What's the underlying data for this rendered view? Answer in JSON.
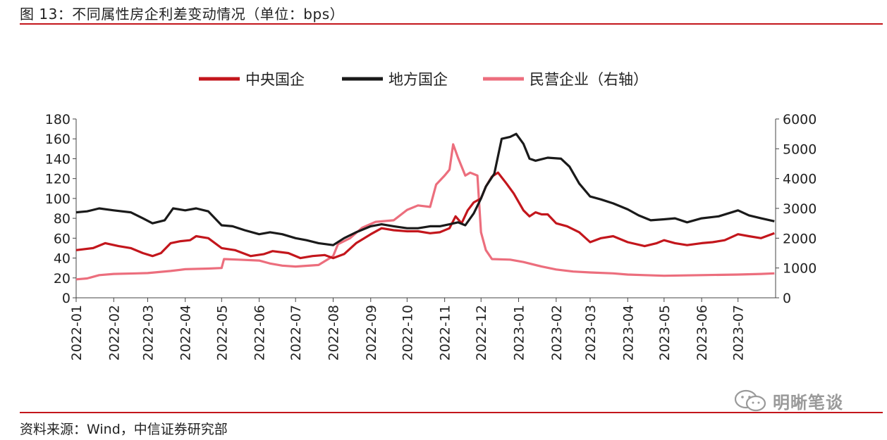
{
  "header": {
    "title": "图 13：不同属性房企利差变动情况（单位：bps）"
  },
  "footer": {
    "source": "资料来源：Wind，中信证券研究部",
    "watermark": "明晰笔谈",
    "watermark_icon": "wechat-icon"
  },
  "colors": {
    "accent": "#c3161c",
    "central_soe": "#c3161c",
    "local_soe": "#1a1a1a",
    "private": "#ec6e7d"
  },
  "chart_data": {
    "type": "line",
    "title": "",
    "xlabel": "",
    "ylabel": "",
    "legend_position": "top",
    "grid": false,
    "x_ticks": [
      "2022-01",
      "2022-02",
      "2022-03",
      "2022-04",
      "2022-05",
      "2022-06",
      "2022-07",
      "2022-08",
      "2022-09",
      "2022-10",
      "2022-11",
      "2022-12",
      "2023-01",
      "2023-02",
      "2023-03",
      "2023-04",
      "2023-05",
      "2023-06",
      "2023-07"
    ],
    "y_left": {
      "lim": [
        0,
        180
      ],
      "ticks": [
        "0",
        "20",
        "40",
        "60",
        "80",
        "100",
        "120",
        "140",
        "160",
        "180"
      ]
    },
    "y_right": {
      "lim": [
        0,
        6000
      ],
      "ticks": [
        "0",
        "1000",
        "2000",
        "3000",
        "4000",
        "5000",
        "6000"
      ]
    },
    "series": [
      {
        "name": "中央国企",
        "axis": "left",
        "color": "#c3161c",
        "points": [
          [
            "2022-01-01",
            48
          ],
          [
            "2022-01-15",
            50
          ],
          [
            "2022-01-25",
            55
          ],
          [
            "2022-02-05",
            52
          ],
          [
            "2022-02-15",
            50
          ],
          [
            "2022-02-25",
            45
          ],
          [
            "2022-03-05",
            42
          ],
          [
            "2022-03-12",
            45
          ],
          [
            "2022-03-20",
            55
          ],
          [
            "2022-03-28",
            57
          ],
          [
            "2022-04-05",
            58
          ],
          [
            "2022-04-10",
            62
          ],
          [
            "2022-04-20",
            60
          ],
          [
            "2022-05-01",
            50
          ],
          [
            "2022-05-12",
            48
          ],
          [
            "2022-05-25",
            42
          ],
          [
            "2022-06-05",
            44
          ],
          [
            "2022-06-12",
            47
          ],
          [
            "2022-06-25",
            45
          ],
          [
            "2022-07-05",
            40
          ],
          [
            "2022-07-15",
            42
          ],
          [
            "2022-07-25",
            43
          ],
          [
            "2022-08-01",
            40
          ],
          [
            "2022-08-10",
            44
          ],
          [
            "2022-08-20",
            55
          ],
          [
            "2022-09-01",
            64
          ],
          [
            "2022-09-10",
            70
          ],
          [
            "2022-09-20",
            68
          ],
          [
            "2022-10-01",
            67
          ],
          [
            "2022-10-10",
            67
          ],
          [
            "2022-10-20",
            65
          ],
          [
            "2022-10-28",
            66
          ],
          [
            "2022-11-05",
            70
          ],
          [
            "2022-11-10",
            82
          ],
          [
            "2022-11-15",
            75
          ],
          [
            "2022-11-20",
            88
          ],
          [
            "2022-11-25",
            96
          ],
          [
            "2022-12-01",
            100
          ],
          [
            "2022-12-05",
            112
          ],
          [
            "2022-12-10",
            122
          ],
          [
            "2022-12-15",
            126
          ],
          [
            "2022-12-22",
            115
          ],
          [
            "2022-12-28",
            105
          ],
          [
            "2023-01-05",
            88
          ],
          [
            "2023-01-10",
            82
          ],
          [
            "2023-01-15",
            86
          ],
          [
            "2023-01-20",
            84
          ],
          [
            "2023-01-25",
            84
          ],
          [
            "2023-02-01",
            75
          ],
          [
            "2023-02-10",
            72
          ],
          [
            "2023-02-20",
            66
          ],
          [
            "2023-03-01",
            56
          ],
          [
            "2023-03-10",
            60
          ],
          [
            "2023-03-20",
            62
          ],
          [
            "2023-04-01",
            56
          ],
          [
            "2023-04-15",
            52
          ],
          [
            "2023-04-25",
            55
          ],
          [
            "2023-05-01",
            58
          ],
          [
            "2023-05-10",
            55
          ],
          [
            "2023-05-20",
            53
          ],
          [
            "2023-06-01",
            55
          ],
          [
            "2023-06-10",
            56
          ],
          [
            "2023-06-20",
            58
          ],
          [
            "2023-07-01",
            64
          ],
          [
            "2023-07-10",
            62
          ],
          [
            "2023-07-20",
            60
          ],
          [
            "2023-07-31",
            65
          ]
        ]
      },
      {
        "name": "地方国企",
        "axis": "left",
        "color": "#1a1a1a",
        "points": [
          [
            "2022-01-01",
            86
          ],
          [
            "2022-01-10",
            87
          ],
          [
            "2022-01-20",
            90
          ],
          [
            "2022-02-01",
            88
          ],
          [
            "2022-02-15",
            86
          ],
          [
            "2022-02-25",
            80
          ],
          [
            "2022-03-05",
            75
          ],
          [
            "2022-03-15",
            78
          ],
          [
            "2022-03-22",
            90
          ],
          [
            "2022-04-01",
            88
          ],
          [
            "2022-04-10",
            90
          ],
          [
            "2022-04-20",
            87
          ],
          [
            "2022-05-01",
            73
          ],
          [
            "2022-05-10",
            72
          ],
          [
            "2022-05-20",
            68
          ],
          [
            "2022-06-01",
            64
          ],
          [
            "2022-06-10",
            66
          ],
          [
            "2022-06-20",
            64
          ],
          [
            "2022-07-01",
            60
          ],
          [
            "2022-07-10",
            58
          ],
          [
            "2022-07-20",
            55
          ],
          [
            "2022-08-01",
            53
          ],
          [
            "2022-08-10",
            60
          ],
          [
            "2022-08-20",
            66
          ],
          [
            "2022-09-01",
            72
          ],
          [
            "2022-09-10",
            74
          ],
          [
            "2022-09-20",
            72
          ],
          [
            "2022-10-01",
            70
          ],
          [
            "2022-10-10",
            70
          ],
          [
            "2022-10-20",
            72
          ],
          [
            "2022-10-28",
            72
          ],
          [
            "2022-11-05",
            74
          ],
          [
            "2022-11-12",
            76
          ],
          [
            "2022-11-18",
            73
          ],
          [
            "2022-11-25",
            85
          ],
          [
            "2022-12-01",
            100
          ],
          [
            "2022-12-05",
            112
          ],
          [
            "2022-12-12",
            125
          ],
          [
            "2022-12-18",
            160
          ],
          [
            "2022-12-25",
            162
          ],
          [
            "2022-12-30",
            165
          ],
          [
            "2023-01-05",
            155
          ],
          [
            "2023-01-10",
            140
          ],
          [
            "2023-01-15",
            138
          ],
          [
            "2023-01-25",
            141
          ],
          [
            "2023-02-05",
            140
          ],
          [
            "2023-02-12",
            132
          ],
          [
            "2023-02-20",
            115
          ],
          [
            "2023-03-01",
            102
          ],
          [
            "2023-03-10",
            99
          ],
          [
            "2023-03-20",
            95
          ],
          [
            "2023-04-01",
            89
          ],
          [
            "2023-04-10",
            83
          ],
          [
            "2023-04-20",
            78
          ],
          [
            "2023-05-01",
            79
          ],
          [
            "2023-05-10",
            80
          ],
          [
            "2023-05-20",
            76
          ],
          [
            "2023-06-01",
            80
          ],
          [
            "2023-06-15",
            82
          ],
          [
            "2023-07-01",
            88
          ],
          [
            "2023-07-10",
            83
          ],
          [
            "2023-07-20",
            80
          ],
          [
            "2023-07-31",
            77
          ]
        ]
      },
      {
        "name": "民营企业（右轴）",
        "axis": "right",
        "color": "#ec6e7d",
        "points": [
          [
            "2022-01-01",
            620
          ],
          [
            "2022-01-10",
            650
          ],
          [
            "2022-01-20",
            760
          ],
          [
            "2022-02-01",
            800
          ],
          [
            "2022-02-20",
            820
          ],
          [
            "2022-03-01",
            830
          ],
          [
            "2022-03-20",
            900
          ],
          [
            "2022-04-01",
            960
          ],
          [
            "2022-04-20",
            980
          ],
          [
            "2022-05-01",
            1000
          ],
          [
            "2022-05-03",
            1300
          ],
          [
            "2022-05-15",
            1280
          ],
          [
            "2022-06-01",
            1250
          ],
          [
            "2022-06-10",
            1150
          ],
          [
            "2022-06-20",
            1080
          ],
          [
            "2022-07-01",
            1050
          ],
          [
            "2022-07-20",
            1100
          ],
          [
            "2022-08-01",
            1400
          ],
          [
            "2022-08-05",
            1800
          ],
          [
            "2022-08-15",
            2000
          ],
          [
            "2022-08-25",
            2350
          ],
          [
            "2022-09-05",
            2550
          ],
          [
            "2022-09-20",
            2600
          ],
          [
            "2022-10-01",
            2950
          ],
          [
            "2022-10-10",
            3100
          ],
          [
            "2022-10-20",
            3050
          ],
          [
            "2022-10-25",
            3800
          ],
          [
            "2022-11-01",
            4100
          ],
          [
            "2022-11-05",
            4300
          ],
          [
            "2022-11-08",
            5150
          ],
          [
            "2022-11-12",
            4700
          ],
          [
            "2022-11-18",
            4100
          ],
          [
            "2022-11-22",
            4200
          ],
          [
            "2022-11-28",
            4100
          ],
          [
            "2022-12-01",
            2200
          ],
          [
            "2022-12-05",
            1600
          ],
          [
            "2022-12-10",
            1300
          ],
          [
            "2022-12-25",
            1280
          ],
          [
            "2023-01-05",
            1200
          ],
          [
            "2023-01-20",
            1050
          ],
          [
            "2023-02-01",
            950
          ],
          [
            "2023-02-15",
            880
          ],
          [
            "2023-03-01",
            850
          ],
          [
            "2023-03-20",
            820
          ],
          [
            "2023-04-01",
            780
          ],
          [
            "2023-04-15",
            760
          ],
          [
            "2023-05-01",
            740
          ],
          [
            "2023-06-01",
            760
          ],
          [
            "2023-07-01",
            780
          ],
          [
            "2023-07-20",
            800
          ],
          [
            "2023-07-31",
            820
          ]
        ]
      }
    ]
  }
}
